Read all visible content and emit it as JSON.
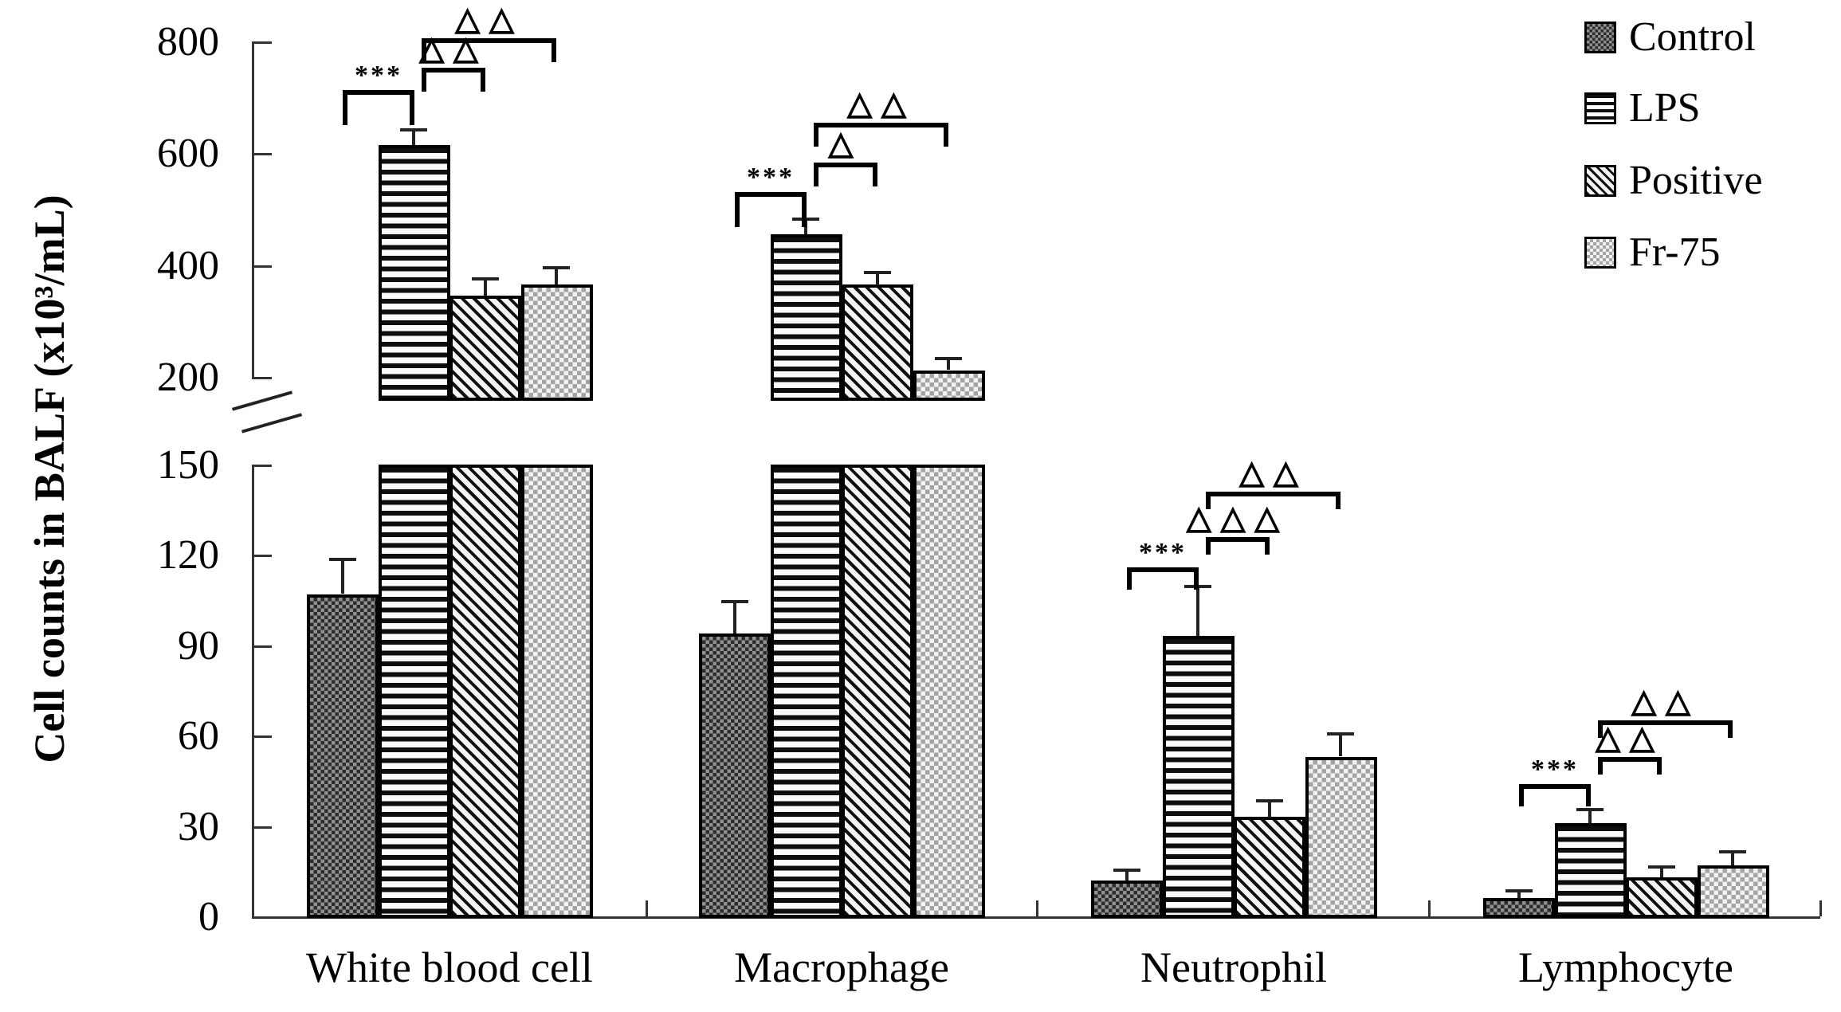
{
  "figure": {
    "background": "#ffffff",
    "ink_color": "#000000",
    "axis_color": "#333333"
  },
  "chart_data": {
    "type": "bar",
    "title": "",
    "ylabel": "Cell counts in BALF (x10³/mL)",
    "xlabel": "",
    "categories": [
      "White blood cell",
      "Macrophage",
      "Neutrophil",
      "Lymphocyte"
    ],
    "series": [
      {
        "name": "Control",
        "pattern": "control",
        "values": [
          107,
          94,
          12,
          6
        ],
        "errors": [
          12,
          11,
          4,
          3
        ]
      },
      {
        "name": "LPS",
        "pattern": "lps",
        "values": [
          615,
          455,
          93,
          31
        ],
        "errors": [
          30,
          30,
          17,
          5
        ]
      },
      {
        "name": "Positive",
        "pattern": "positive",
        "values": [
          345,
          365,
          33,
          13
        ],
        "errors": [
          33,
          25,
          6,
          4
        ]
      },
      {
        "name": "Fr-75",
        "pattern": "fr75",
        "values": [
          365,
          212,
          53,
          17
        ],
        "errors": [
          33,
          23,
          8,
          5
        ]
      }
    ],
    "axis_break": true,
    "top_axis": {
      "ticks": [
        200,
        400,
        600,
        800
      ],
      "range": [
        200,
        800
      ]
    },
    "bottom_axis": {
      "ticks": [
        0,
        30,
        60,
        90,
        120,
        150
      ],
      "range": [
        0,
        150
      ]
    },
    "grid": false,
    "legend_position": "top-right",
    "error_bars": "upper SEM caps",
    "significance": [
      {
        "category": 0,
        "from": 0,
        "to": 1,
        "pair": [
          "Control",
          "LPS"
        ],
        "label": "***",
        "level": 713
      },
      {
        "category": 0,
        "from": 1,
        "to": 2,
        "pair": [
          "LPS",
          "Positive"
        ],
        "label": "△△",
        "level": 753
      },
      {
        "category": 0,
        "from": 1,
        "to": 3,
        "pair": [
          "LPS",
          "Fr-75"
        ],
        "label": "△△",
        "level": 806
      },
      {
        "category": 1,
        "from": 0,
        "to": 1,
        "pair": [
          "Control",
          "LPS"
        ],
        "label": "***",
        "level": 530
      },
      {
        "category": 1,
        "from": 1,
        "to": 2,
        "pair": [
          "LPS",
          "Positive"
        ],
        "label": "△",
        "level": 583
      },
      {
        "category": 1,
        "from": 1,
        "to": 3,
        "pair": [
          "LPS",
          "Fr-75"
        ],
        "label": "△△",
        "level": 655
      },
      {
        "category": 2,
        "from": 0,
        "to": 1,
        "pair": [
          "Control",
          "LPS"
        ],
        "label": "***",
        "level": 116
      },
      {
        "category": 2,
        "from": 1,
        "to": 2,
        "pair": [
          "LPS",
          "Positive"
        ],
        "label": "△△△",
        "level": 126
      },
      {
        "category": 2,
        "from": 1,
        "to": 3,
        "pair": [
          "LPS",
          "Fr-75"
        ],
        "label": "△△",
        "level": 141
      },
      {
        "category": 3,
        "from": 0,
        "to": 1,
        "pair": [
          "Control",
          "LPS"
        ],
        "label": "***",
        "level": 44
      },
      {
        "category": 3,
        "from": 1,
        "to": 2,
        "pair": [
          "LPS",
          "Positive"
        ],
        "label": "△△",
        "level": 53
      },
      {
        "category": 3,
        "from": 1,
        "to": 3,
        "pair": [
          "LPS",
          "Fr-75"
        ],
        "label": "△△",
        "level": 65
      }
    ]
  }
}
